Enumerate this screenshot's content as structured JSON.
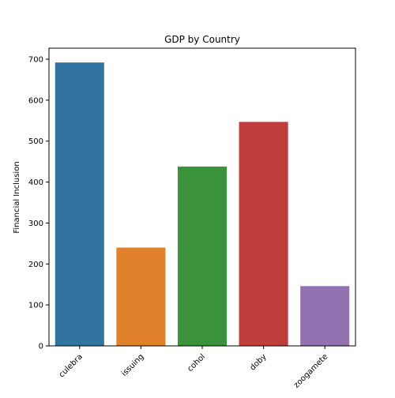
{
  "chart_data": {
    "type": "bar",
    "title": "GDP by Country",
    "xlabel": "",
    "ylabel": "Financial Inclusion",
    "categories": [
      "culebra",
      "issuing",
      "cohol",
      "doby",
      "zoogamete"
    ],
    "values": [
      692,
      240,
      438,
      547,
      146
    ],
    "colors": [
      "#3274a1",
      "#e1812c",
      "#3a923a",
      "#c03d3e",
      "#9372b2"
    ],
    "ylim": [
      0,
      727
    ],
    "yticks": [
      0,
      100,
      200,
      300,
      400,
      500,
      600,
      700
    ],
    "xtick_rotation": -45,
    "grid": false,
    "legend": "none"
  }
}
